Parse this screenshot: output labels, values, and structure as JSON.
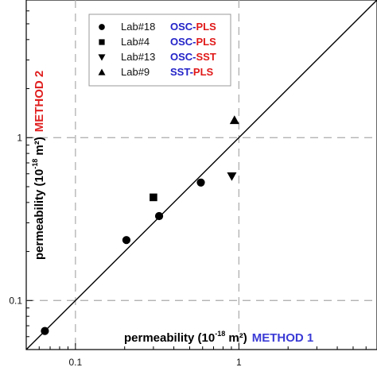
{
  "chart_data": {
    "type": "scatter",
    "x_scale": "log",
    "y_scale": "log",
    "xlim": [
      0.05,
      7
    ],
    "ylim": [
      0.05,
      7
    ],
    "grid": true,
    "grid_values": [
      0.1,
      1
    ],
    "x_ticks": [
      "0.1",
      "1"
    ],
    "y_ticks": [
      "0.1",
      "1"
    ],
    "xlabel": {
      "text": "permeability (10",
      "exp": "-18",
      "unit": " m²)",
      "method": "METHOD 1",
      "method_color": "#3b3bd6"
    },
    "ylabel": {
      "text": "permeability (10",
      "exp": "-18",
      "unit": " m²)",
      "method": "METHOD 2",
      "method_color": "#e02020"
    },
    "reference_line": "y = x",
    "legend_position": "top-left",
    "colors": {
      "osc": "#2222c8",
      "pls": "#e01818",
      "sst": "#e01818",
      "sst_first": "#2222c8"
    },
    "series": [
      {
        "name": "Lab#18",
        "marker": "circle",
        "method_parts": [
          "OSC",
          "PLS"
        ],
        "points": [
          [
            0.065,
            0.065
          ],
          [
            0.205,
            0.235
          ],
          [
            0.325,
            0.33
          ],
          [
            0.585,
            0.53
          ]
        ]
      },
      {
        "name": "Lab#4",
        "marker": "square",
        "method_parts": [
          "OSC",
          "PLS"
        ],
        "points": [
          [
            0.3,
            0.43
          ]
        ]
      },
      {
        "name": "Lab#13",
        "marker": "triangle-down",
        "method_parts": [
          "OSC",
          "SST"
        ],
        "points": [
          [
            0.905,
            0.58
          ]
        ]
      },
      {
        "name": "Lab#9",
        "marker": "triangle-up",
        "method_parts": [
          "SST",
          "PLS"
        ],
        "points": [
          [
            0.94,
            1.28
          ]
        ]
      }
    ]
  }
}
